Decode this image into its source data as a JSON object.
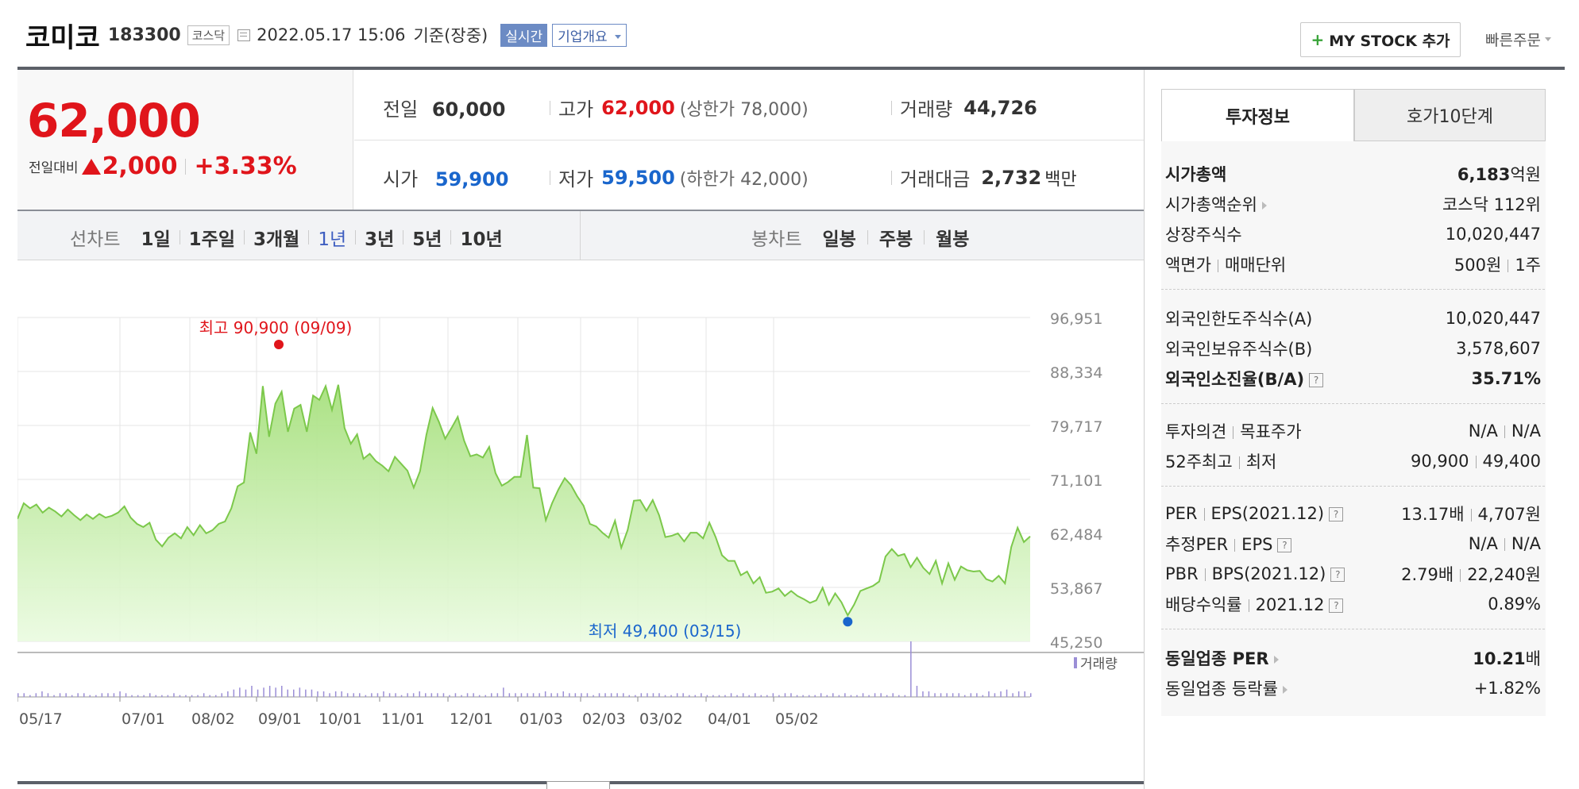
{
  "header": {
    "company": "코미코",
    "code": "183300",
    "market_badge": "코스닥",
    "datetime": "2022.05.17 15:06",
    "basis": "기준(장중)",
    "realtime_label": "실시간",
    "overview_label": "기업개요",
    "mystock_label": "MY STOCK 추가",
    "quick_order_label": "빠른주문"
  },
  "quote": {
    "price": "62,000",
    "change_label": "전일대비",
    "change": "2,000",
    "change_pct": "+3.33%",
    "prev_label": "전일",
    "prev": "60,000",
    "high_label": "고가",
    "high": "62,000",
    "upper_limit": "(상한가 78,000)",
    "volume_label": "거래량",
    "volume": "44,726",
    "open_label": "시가",
    "open": "59,900",
    "low_label": "저가",
    "low": "59,500",
    "lower_limit": "(하한가 42,000)",
    "amount_label": "거래대금",
    "amount": "2,732",
    "amount_unit": "백만"
  },
  "chart_controls": {
    "line_label": "선차트",
    "periods": [
      "1일",
      "1주일",
      "3개월",
      "1년",
      "3년",
      "5년",
      "10년"
    ],
    "active_period": "1년",
    "candle_label": "봉차트",
    "candles": [
      "일봉",
      "주봉",
      "월봉"
    ]
  },
  "chart_data": {
    "type": "area",
    "y_ticks": [
      "96,951",
      "88,334",
      "79,717",
      "71,101",
      "62,484",
      "53,867",
      "45,250"
    ],
    "ylim": [
      45250,
      96951
    ],
    "x_ticks": [
      "05/17",
      "07/01",
      "08/02",
      "09/01",
      "10/01",
      "11/01",
      "12/01",
      "01/03",
      "02/03",
      "03/02",
      "04/01",
      "05/02"
    ],
    "values": [
      64800,
      67300,
      66500,
      67100,
      65800,
      66600,
      66000,
      65200,
      66300,
      65400,
      64600,
      65500,
      64800,
      65600,
      65000,
      65300,
      65800,
      66800,
      65000,
      64000,
      63500,
      64200,
      61500,
      60400,
      61800,
      62500,
      61700,
      63500,
      62200,
      63800,
      62500,
      63000,
      64000,
      64400,
      66500,
      70000,
      70600,
      78600,
      75200,
      86000,
      77900,
      83200,
      85100,
      78700,
      82400,
      83000,
      78700,
      84500,
      83800,
      86000,
      82200,
      86200,
      79300,
      76800,
      78300,
      74400,
      75200,
      74000,
      73300,
      72400,
      74700,
      73600,
      72500,
      69800,
      72400,
      78200,
      82500,
      80300,
      77600,
      79300,
      81100,
      77300,
      74800,
      75100,
      74600,
      76300,
      72100,
      70100,
      70700,
      71500,
      71500,
      78200,
      69800,
      69700,
      64600,
      67300,
      69500,
      71300,
      70200,
      68400,
      66900,
      64000,
      63600,
      62600,
      61800,
      64500,
      60200,
      63000,
      67700,
      67800,
      66100,
      67800,
      65400,
      61900,
      62100,
      62500,
      61200,
      62600,
      62600,
      61700,
      64200,
      61900,
      59000,
      58100,
      58100,
      55800,
      56400,
      54500,
      55500,
      53000,
      53200,
      53700,
      52500,
      53300,
      52500,
      52000,
      51400,
      51800,
      53800,
      51100,
      52900,
      51500,
      49400,
      51100,
      53300,
      53700,
      54100,
      54800,
      58800,
      60000,
      58900,
      59200,
      57100,
      58600,
      57000,
      56000,
      58100,
      54500,
      57700,
      55100,
      57200,
      56600,
      56400,
      56500,
      55200,
      54800,
      55700,
      54500,
      60300,
      63400,
      61100,
      62000
    ],
    "series_color": "#7cc84b",
    "max_label": "최고 90,900 (09/09)",
    "min_label": "최저 49,400 (03/15)",
    "volume_legend": "거래량",
    "volume_values": [
      2,
      2,
      1,
      2,
      3,
      2,
      1,
      2,
      2,
      1,
      2,
      2,
      1,
      1,
      2,
      2,
      2,
      3,
      2,
      1,
      1,
      1,
      2,
      1,
      1,
      1,
      2,
      1,
      1,
      1,
      1,
      2,
      1,
      1,
      2,
      3,
      4,
      5,
      4,
      6,
      4,
      5,
      6,
      5,
      6,
      4,
      4,
      5,
      4,
      4,
      3,
      3,
      2,
      3,
      3,
      2,
      2,
      2,
      1,
      2,
      2,
      3,
      2,
      2,
      1,
      2,
      2,
      3,
      2,
      2,
      2,
      2,
      1,
      2,
      1,
      2,
      2,
      1,
      1,
      2,
      2,
      5,
      2,
      2,
      2,
      2,
      2,
      2,
      3,
      2,
      2,
      3,
      2,
      2,
      2,
      2,
      1,
      2,
      2,
      2,
      2,
      2,
      1,
      1,
      2,
      2,
      2,
      2,
      1,
      1,
      2,
      2,
      1,
      1,
      2,
      1,
      1,
      1,
      1,
      2,
      1,
      2,
      1,
      2,
      1,
      1,
      2,
      1,
      2,
      2,
      1,
      1,
      1,
      1,
      2,
      1,
      2,
      1,
      2,
      1,
      1,
      2,
      1,
      2,
      2,
      1,
      2,
      1,
      1,
      30,
      6,
      3,
      3,
      2,
      2,
      2,
      2,
      2,
      1,
      2,
      2,
      1,
      3,
      2,
      3,
      4,
      2,
      3,
      3,
      2
    ]
  },
  "tabs": {
    "invest": "투자정보",
    "hoga": "호가10단계"
  },
  "info": {
    "market_cap_label": "시가총액",
    "market_cap_val": "6,183",
    "market_cap_unit": "억원",
    "cap_rank_label": "시가총액순위",
    "cap_rank_val": "코스닥 112위",
    "shares_label": "상장주식수",
    "shares_val": "10,020,447",
    "par_label": "액면가",
    "trade_unit_label": "매매단위",
    "par_val": "500원",
    "trade_unit_val": "1주",
    "foreign_limit_label": "외국인한도주식수(A)",
    "foreign_limit_val": "10,020,447",
    "foreign_hold_label": "외국인보유주식수(B)",
    "foreign_hold_val": "3,578,607",
    "foreign_ratio_label": "외국인소진율(B/A)",
    "foreign_ratio_val": "35.71%",
    "opinion_label": "투자의견",
    "target_label": "목표주가",
    "opinion_val": "N/A",
    "target_val": "N/A",
    "w52_high_label": "52주최고",
    "w52_low_label": "최저",
    "w52_high_val": "90,900",
    "w52_low_val": "49,400",
    "per_label": "PER",
    "eps_label": "EPS(2021.12)",
    "per_val": "13.17배",
    "eps_val": "4,707원",
    "est_per_label": "추정PER",
    "est_eps_label": "EPS",
    "est_per_val": "N/A",
    "est_eps_val": "N/A",
    "pbr_label": "PBR",
    "bps_label": "BPS(2021.12)",
    "pbr_val": "2.79배",
    "bps_val": "22,240원",
    "div_label": "배당수익률",
    "div_year": "2021.12",
    "div_val": "0.89%",
    "sector_per_label": "동일업종 PER",
    "sector_per_val": "10.21",
    "sector_per_unit": "배",
    "sector_chg_label": "동일업종 등락률",
    "sector_chg_val": "+1.82%"
  }
}
